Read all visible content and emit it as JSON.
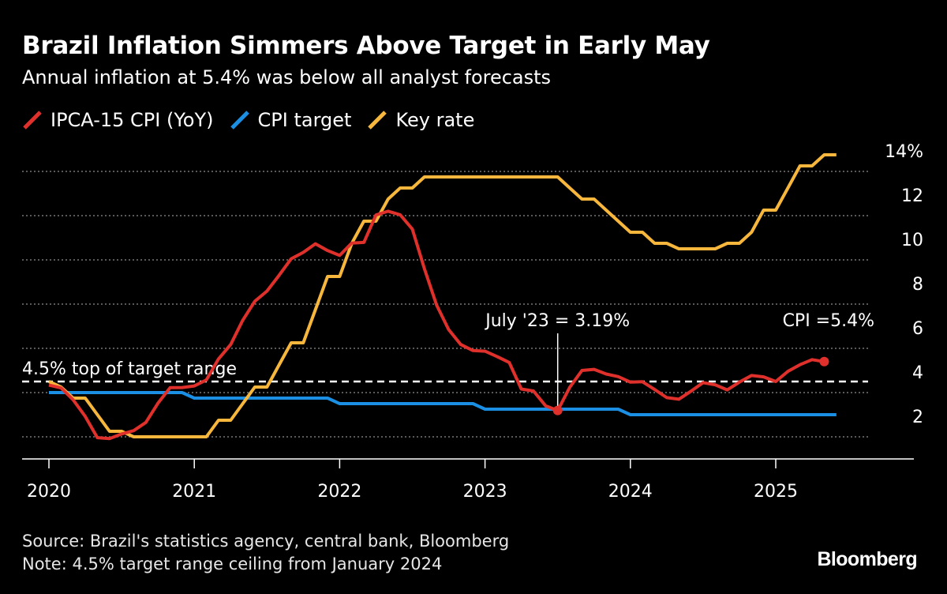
{
  "title": "Brazil Inflation Simmers Above Target in Early May",
  "subtitle": "Annual inflation at 5.4% was below all analyst forecasts",
  "footer": {
    "source": "Source: Brazil's statistics agency, central bank, Bloomberg",
    "note": "Note: 4.5% target range ceiling from January 2024"
  },
  "logo": "Bloomberg",
  "chart_data": {
    "type": "line",
    "start_month": "2020-01",
    "frequency": "monthly",
    "x_ticks": [
      "2020",
      "2021",
      "2022",
      "2023",
      "2024",
      "2025"
    ],
    "y_ticks": [
      {
        "value": 14,
        "label": "14%"
      },
      {
        "value": 12,
        "label": "12"
      },
      {
        "value": 10,
        "label": "10"
      },
      {
        "value": 8,
        "label": "8"
      },
      {
        "value": 6,
        "label": "6"
      },
      {
        "value": 4,
        "label": "4"
      },
      {
        "value": 2,
        "label": "2"
      }
    ],
    "ylim": [
      1,
      15
    ],
    "grid": true,
    "legend_position": "top-left",
    "series": [
      {
        "name": "IPCA-15 CPI (YoY)",
        "color": "#e0302b",
        "values": [
          4.34,
          4.21,
          3.67,
          2.92,
          1.96,
          1.92,
          2.13,
          2.28,
          2.65,
          3.52,
          4.22,
          4.23,
          4.3,
          4.57,
          5.52,
          6.17,
          7.27,
          8.13,
          8.59,
          9.3,
          10.05,
          10.34,
          10.73,
          10.42,
          10.2,
          10.76,
          10.79,
          12.03,
          12.2,
          12.04,
          11.39,
          9.6,
          7.96,
          6.85,
          6.17,
          5.9,
          5.87,
          5.63,
          5.36,
          4.16,
          4.07,
          3.4,
          3.19,
          4.24,
          5.0,
          5.05,
          4.84,
          4.72,
          4.47,
          4.49,
          4.14,
          3.77,
          3.7,
          4.06,
          4.45,
          4.35,
          4.12,
          4.47,
          4.77,
          4.71,
          4.5,
          4.96,
          5.26,
          5.49,
          5.4
        ]
      },
      {
        "name": "CPI target",
        "color": "#1a8fe3",
        "values": [
          4,
          4,
          4,
          4,
          4,
          4,
          4,
          4,
          4,
          4,
          4,
          4,
          3.75,
          3.75,
          3.75,
          3.75,
          3.75,
          3.75,
          3.75,
          3.75,
          3.75,
          3.75,
          3.75,
          3.75,
          3.5,
          3.5,
          3.5,
          3.5,
          3.5,
          3.5,
          3.5,
          3.5,
          3.5,
          3.5,
          3.5,
          3.5,
          3.25,
          3.25,
          3.25,
          3.25,
          3.25,
          3.25,
          3.25,
          3.25,
          3.25,
          3.25,
          3.25,
          3.25,
          3,
          3,
          3,
          3,
          3,
          3,
          3,
          3,
          3,
          3,
          3,
          3,
          3,
          3,
          3,
          3,
          3,
          3
        ]
      },
      {
        "name": "Key rate",
        "color": "#f6b73c",
        "values": [
          4.5,
          4.25,
          3.75,
          3.75,
          3.0,
          2.25,
          2.25,
          2.0,
          2.0,
          2.0,
          2.0,
          2.0,
          2.0,
          2.0,
          2.75,
          2.75,
          3.5,
          4.25,
          4.25,
          5.25,
          6.25,
          6.25,
          7.75,
          9.25,
          9.25,
          10.75,
          11.75,
          11.75,
          12.75,
          13.25,
          13.25,
          13.75,
          13.75,
          13.75,
          13.75,
          13.75,
          13.75,
          13.75,
          13.75,
          13.75,
          13.75,
          13.75,
          13.75,
          13.25,
          12.75,
          12.75,
          12.25,
          11.75,
          11.25,
          11.25,
          10.75,
          10.75,
          10.5,
          10.5,
          10.5,
          10.5,
          10.75,
          10.75,
          11.25,
          12.25,
          12.25,
          13.25,
          14.25,
          14.25,
          14.75,
          14.75
        ]
      }
    ],
    "reference_line": {
      "value": 4.5,
      "label": "4.5% top of target range"
    },
    "annotations": [
      {
        "label": "July '23 = 3.19%",
        "month_index": 42,
        "value": 3.19
      },
      {
        "label": "CPI =5.4%",
        "month_index": 64,
        "value": 5.4
      }
    ]
  }
}
